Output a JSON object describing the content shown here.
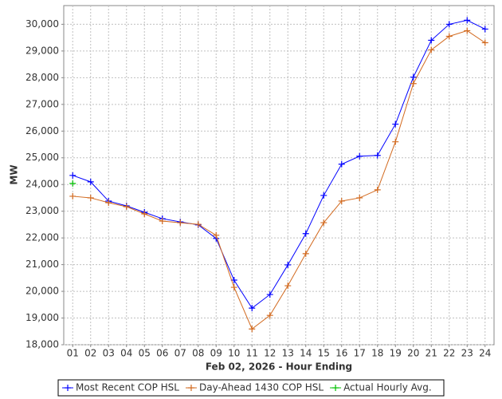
{
  "chart_data": {
    "type": "line",
    "x_label": "Feb 02, 2026 - Hour Ending",
    "y_label": "MW",
    "categories": [
      "01",
      "02",
      "03",
      "04",
      "05",
      "06",
      "07",
      "08",
      "09",
      "10",
      "11",
      "12",
      "13",
      "14",
      "15",
      "16",
      "17",
      "18",
      "19",
      "20",
      "21",
      "22",
      "23",
      "24"
    ],
    "series": [
      {
        "name": "Most Recent COP HSL",
        "color": "#0000ff",
        "values": [
          24340,
          24100,
          23380,
          23200,
          22960,
          22720,
          22600,
          22490,
          21980,
          20420,
          19370,
          19880,
          20990,
          22160,
          23590,
          24760,
          25060,
          25090,
          26260,
          28020,
          29400,
          30000,
          30150,
          29820
        ]
      },
      {
        "name": "Day-Ahead 1430 COP HSL",
        "color": "#d2691e",
        "values": [
          23560,
          23500,
          23320,
          23170,
          22900,
          22630,
          22570,
          22510,
          22100,
          20150,
          18590,
          19100,
          20210,
          21410,
          22570,
          23380,
          23500,
          23800,
          25600,
          27780,
          29040,
          29550,
          29760,
          29310
        ]
      },
      {
        "name": "Actual Hourly Avg.",
        "color": "#00c000",
        "values": [
          24040,
          null,
          null,
          null,
          null,
          null,
          null,
          null,
          null,
          null,
          null,
          null,
          null,
          null,
          null,
          null,
          null,
          null,
          null,
          null,
          null,
          null,
          null,
          null
        ]
      }
    ],
    "ylim": [
      18000,
      30700
    ],
    "yticks": [
      {
        "value": 18000,
        "label": "18,000"
      },
      {
        "value": 19000,
        "label": "19,000"
      },
      {
        "value": 20000,
        "label": "20,000"
      },
      {
        "value": 21000,
        "label": "21,000"
      },
      {
        "value": 22000,
        "label": "22,000"
      },
      {
        "value": 23000,
        "label": "23,000"
      },
      {
        "value": 24000,
        "label": "24,000"
      },
      {
        "value": 25000,
        "label": "25,000"
      },
      {
        "value": 26000,
        "label": "26,000"
      },
      {
        "value": 27000,
        "label": "27,000"
      },
      {
        "value": 28000,
        "label": "28,000"
      },
      {
        "value": 29000,
        "label": "29,000"
      },
      {
        "value": 30000,
        "label": "30,000"
      }
    ],
    "grid": true
  }
}
